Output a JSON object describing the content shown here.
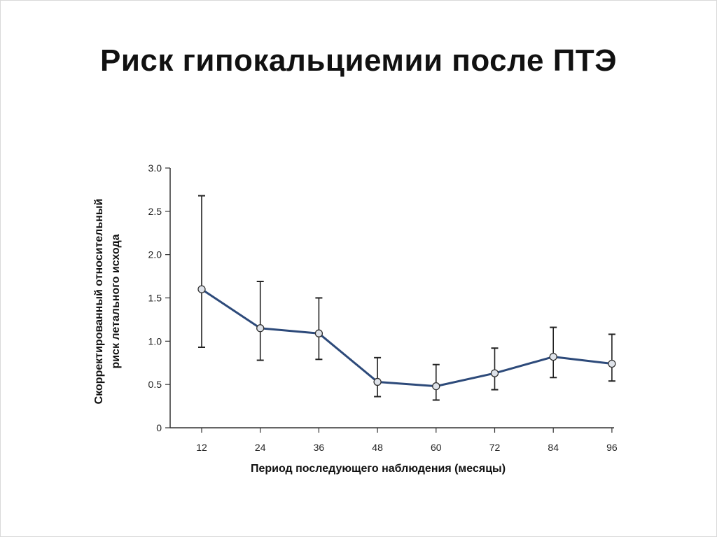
{
  "slide": {
    "title": "Риск гипокальциемии после ПТЭ"
  },
  "colors": {
    "line": "#2d4a7a",
    "marker_fill": "#dfe3ea",
    "errorbar": "#222222",
    "axis": "#333333"
  },
  "chart_data": {
    "type": "line",
    "title": "",
    "xlabel": "Период последующего наблюдения (месяцы)",
    "ylabel_lines": [
      "Скорректированный относительный",
      "риск летального исхода"
    ],
    "x": [
      12,
      24,
      36,
      48,
      60,
      72,
      84,
      96
    ],
    "x_tick_labels": [
      "12",
      "24",
      "36",
      "48",
      "60",
      "72",
      "84",
      "96"
    ],
    "y_ticks": [
      0,
      0.5,
      1.0,
      1.5,
      2.0,
      2.5,
      3.0
    ],
    "y_tick_labels": [
      "0",
      "0.5",
      "1.0",
      "1.5",
      "2.0",
      "2.5",
      "3.0"
    ],
    "ylim": [
      0,
      3.0
    ],
    "grid": false,
    "series": [
      {
        "values": [
          1.6,
          1.15,
          1.09,
          0.53,
          0.48,
          0.63,
          0.82,
          0.74
        ],
        "lower": [
          0.93,
          0.78,
          0.79,
          0.36,
          0.32,
          0.44,
          0.58,
          0.54
        ],
        "upper": [
          2.68,
          1.69,
          1.5,
          0.81,
          0.73,
          0.92,
          1.16,
          1.08
        ]
      }
    ]
  }
}
